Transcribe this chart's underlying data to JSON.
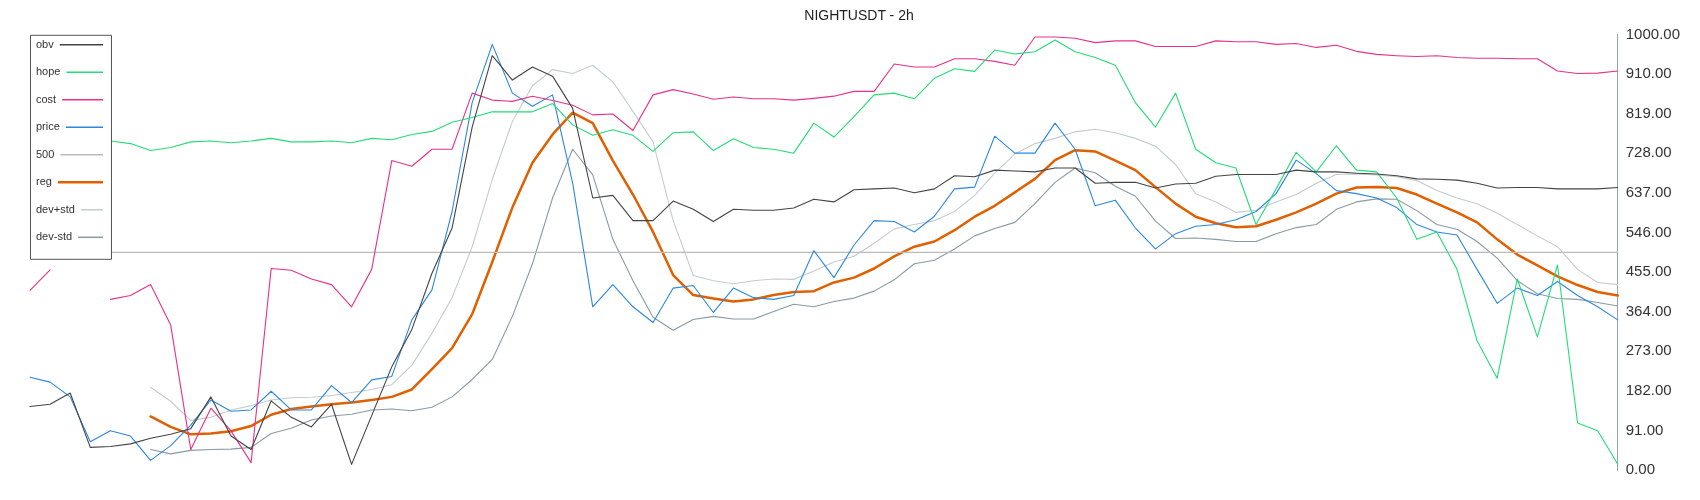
{
  "chart_data": {
    "type": "line",
    "title": "NIGHTUSDT - 2h",
    "categories": [
      null,
      null,
      null,
      null,
      null,
      null,
      null,
      null,
      null,
      null,
      null,
      null,
      null,
      null,
      null,
      null,
      null,
      null,
      null,
      null,
      null,
      null,
      null,
      null,
      null,
      null,
      null,
      null,
      null,
      null,
      null,
      null,
      null,
      null,
      null,
      null,
      null,
      null,
      null,
      null,
      null,
      null,
      null,
      null,
      null,
      null,
      null,
      null,
      null,
      null,
      null,
      null,
      null,
      null,
      null,
      null,
      null,
      null,
      null,
      null,
      null,
      null,
      null,
      null,
      null,
      null,
      null,
      null,
      null,
      null,
      null,
      null,
      null,
      null,
      null,
      null,
      null,
      null,
      null,
      null
    ],
    "series": [
      {
        "name": "obv",
        "color": "#444444",
        "values": [
          146,
          151,
          177,
          52,
          54,
          60,
          73,
          82,
          95,
          168,
          78,
          47,
          159,
          121,
          99,
          151,
          13,
          125,
          237,
          323,
          452,
          556,
          788,
          952,
          896,
          926,
          905,
          831,
          625,
          631,
          573,
          573,
          618,
          599,
          571,
          599,
          597,
          597,
          602,
          622,
          616,
          644,
          646,
          648,
          637,
          646,
          676,
          674,
          689,
          687,
          685,
          694,
          694,
          659,
          661,
          661,
          648,
          657,
          659,
          675,
          679,
          679,
          679,
          689,
          685,
          685,
          682,
          680,
          676,
          669,
          668,
          666,
          659,
          648,
          649,
          649,
          646,
          646,
          646,
          649
        ]
      },
      {
        "name": "hope",
        "color": "#22dd77",
        "values": [
          null,
          null,
          null,
          null,
          756,
          750,
          734,
          741,
          754,
          756,
          752,
          756,
          762,
          754,
          754,
          756,
          752,
          762,
          759,
          771,
          778,
          799,
          810,
          823,
          823,
          823,
          842,
          793,
          769,
          782,
          769,
          732,
          775,
          777,
          734,
          761,
          741,
          737,
          728,
          797,
          765,
          812,
          862,
          866,
          853,
          900,
          922,
          916,
          965,
          956,
          961,
          988,
          961,
          948,
          930,
          844,
          788,
          866,
          737,
          706,
          694,
          564,
          646,
          730,
          685,
          745,
          689,
          685,
          625,
          530,
          547,
          461,
          297,
          211,
          439,
          306,
          471,
          108,
          90,
          13
        ]
      },
      {
        "name": "cost",
        "color": "#e8308c",
        "values": [
          413,
          460,
          null,
          null,
          392,
          401,
          426,
          333,
          47,
          142,
          90,
          17,
          463,
          459,
          439,
          426,
          375,
          461,
          711,
          698,
          737,
          737,
          866,
          850,
          847,
          859,
          849,
          838,
          816,
          818,
          780,
          862,
          874,
          864,
          852,
          857,
          853,
          853,
          850,
          854,
          859,
          870,
          870,
          933,
          926,
          926,
          945,
          945,
          939,
          930,
          995,
          995,
          992,
          982,
          986,
          986,
          973,
          973,
          973,
          986,
          984,
          984,
          978,
          980,
          971,
          976,
          962,
          955,
          952,
          950,
          952,
          948,
          946,
          946,
          945,
          945,
          917,
          911,
          912,
          917
        ]
      },
      {
        "name": "price",
        "color": "#2b88e0",
        "values": [
          213,
          202,
          168,
          65,
          90,
          78,
          22,
          56,
          103,
          161,
          135,
          138,
          181,
          138,
          138,
          194,
          155,
          207,
          215,
          345,
          414,
          594,
          844,
          978,
          866,
          836,
          862,
          659,
          375,
          426,
          375,
          339,
          418,
          424,
          362,
          418,
          396,
          392,
          401,
          504,
          442,
          517,
          573,
          571,
          547,
          583,
          646,
          650,
          767,
          728,
          728,
          797,
          737,
          607,
          620,
          556,
          508,
          543,
          560,
          564,
          575,
          594,
          635,
          712,
          681,
          642,
          635,
          625,
          603,
          564,
          547,
          540,
          461,
          383,
          418,
          401,
          433,
          401,
          375,
          345
        ]
      },
      {
        "name": "500",
        "color": "#bbbbbb",
        "values": [
          null,
          null,
          null,
          null,
          500,
          500,
          500,
          500,
          500,
          500,
          500,
          500,
          500,
          500,
          500,
          500,
          500,
          500,
          500,
          500,
          500,
          500,
          500,
          500,
          500,
          500,
          500,
          500,
          500,
          500,
          500,
          500,
          500,
          500,
          500,
          500,
          500,
          500,
          500,
          500,
          500,
          500,
          500,
          500,
          500,
          500,
          500,
          500,
          500,
          500,
          500,
          500,
          500,
          500,
          500,
          500,
          500,
          500,
          500,
          500,
          500,
          500,
          500,
          500,
          500,
          500,
          500,
          500,
          500,
          500,
          500,
          500,
          500,
          500,
          500,
          500,
          500,
          500,
          500,
          500
        ]
      },
      {
        "name": "reg",
        "color": "#e06000",
        "values": [
          null,
          null,
          null,
          null,
          null,
          null,
          123,
          99,
          82,
          84,
          89,
          101,
          127,
          140,
          146,
          151,
          155,
          161,
          168,
          185,
          232,
          280,
          358,
          478,
          603,
          706,
          771,
          821,
          797,
          711,
          633,
          547,
          448,
          402,
          394,
          387,
          392,
          402,
          409,
          411,
          431,
          442,
          463,
          491,
          513,
          525,
          551,
          582,
          607,
          638,
          669,
          712,
          735,
          732,
          711,
          689,
          650,
          612,
          582,
          567,
          558,
          560,
          575,
          592,
          612,
          635,
          649,
          650,
          648,
          633,
          612,
          592,
          569,
          530,
          495,
          470,
          445,
          425,
          409,
          401
        ]
      },
      {
        "name": "dev+std",
        "color": "#c4ccd0",
        "values": [
          null,
          null,
          null,
          null,
          null,
          null,
          190,
          158,
          114,
          121,
          138,
          148,
          161,
          166,
          167,
          171,
          178,
          185,
          196,
          241,
          314,
          396,
          513,
          668,
          801,
          883,
          920,
          911,
          930,
          892,
          824,
          754,
          573,
          447,
          435,
          428,
          435,
          439,
          438,
          457,
          478,
          491,
          521,
          554,
          564,
          573,
          594,
          631,
          682,
          726,
          750,
          762,
          777,
          783,
          775,
          762,
          744,
          702,
          635,
          616,
          592,
          597,
          616,
          633,
          659,
          679,
          680,
          678,
          674,
          665,
          642,
          625,
          612,
          590,
          564,
          538,
          513,
          461,
          431,
          426
        ]
      },
      {
        "name": "dev-std",
        "color": "#8a9aa4",
        "values": [
          null,
          null,
          null,
          null,
          null,
          null,
          47,
          37,
          45,
          47,
          48,
          52,
          84,
          96,
          115,
          124,
          128,
          138,
          140,
          136,
          144,
          168,
          208,
          254,
          353,
          474,
          625,
          737,
          678,
          530,
          435,
          351,
          321,
          346,
          353,
          347,
          347,
          364,
          381,
          375,
          387,
          395,
          411,
          437,
          474,
          482,
          508,
          538,
          555,
          569,
          612,
          661,
          694,
          683,
          652,
          629,
          572,
          532,
          533,
          530,
          525,
          525,
          543,
          557,
          564,
          599,
          616,
          623,
          622,
          596,
          564,
          553,
          525,
          487,
          435,
          405,
          394,
          392,
          385,
          377
        ]
      }
    ],
    "ylim": [
      0,
      1000
    ],
    "yticks": [
      {
        "value": 0,
        "label": "0.00"
      },
      {
        "value": 91,
        "label": "91.00"
      },
      {
        "value": 182,
        "label": "182.00"
      },
      {
        "value": 273,
        "label": "273.00"
      },
      {
        "value": 364,
        "label": "364.00"
      },
      {
        "value": 455,
        "label": "455.00"
      },
      {
        "value": 546,
        "label": "546.00"
      },
      {
        "value": 637,
        "label": "637.00"
      },
      {
        "value": 728,
        "label": "728.00"
      },
      {
        "value": 819,
        "label": "819.00"
      },
      {
        "value": 910,
        "label": "910.00"
      },
      {
        "value": 1000,
        "label": "1000.00"
      }
    ],
    "tick_labels": "y",
    "grid": false,
    "legend": "top left",
    "marker": "none",
    "line_style": "solid"
  }
}
